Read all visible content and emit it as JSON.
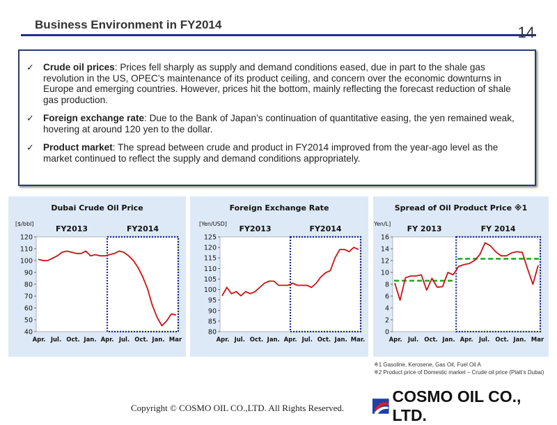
{
  "header": {
    "title": "Business Environment in FY2014",
    "page_number": "14"
  },
  "bullets": [
    {
      "label": "Crude oil prices",
      "sep": ": ",
      "text": "Prices fell sharply as supply and demand conditions eased, due in part to the shale gas revolution in the US, OPEC’s maintenance of its product ceiling, and concern over the economic downturns in Europe and emerging countries. However, prices hit the bottom, mainly reflecting the forecast reduction of shale gas production."
    },
    {
      "label": "Foreign exchange rate",
      "sep": ":  ",
      "text": "Due to the Bank of Japan’s continuation of quantitative easing, the yen remained weak, hovering at around 120 yen to the dollar."
    },
    {
      "label": "Product market",
      "sep": ":  ",
      "text": "The spread between crude and product in FY2014 improved from the year-ago level as the market continued to reflect the supply and demand conditions appropriately."
    }
  ],
  "icons": {
    "bullet": "checkmark-icon",
    "logo": "cosmo-logo-icon"
  },
  "colors": {
    "title_rule": "#1f2f8a",
    "line": "#cc1111",
    "period_box": "#1a2a9a",
    "avg_line": "#22aa22",
    "panel_bg": "#dde9f6"
  },
  "chart_data": [
    {
      "type": "line",
      "title": "Dubai Crude Oil Price",
      "ylabel": "[$/bbl]",
      "period_labels": [
        "FY2013",
        "FY2014"
      ],
      "xticks": [
        "Apr.",
        "Jul.",
        "Oct.",
        "Jan.",
        "Apr.",
        "Jul.",
        "Oct.",
        "Jan.",
        "Mar"
      ],
      "yticks": [
        40,
        50,
        60,
        70,
        80,
        90,
        100,
        110,
        120
      ],
      "ylim": [
        40,
        120
      ],
      "series": [
        {
          "values": [
            101,
            100,
            100,
            102,
            104,
            107,
            108,
            107,
            106,
            106,
            108,
            104,
            105,
            104,
            104,
            105,
            106,
            108,
            107,
            104,
            100,
            94,
            86,
            76,
            62,
            52,
            45,
            49,
            55,
            54
          ]
        }
      ]
    },
    {
      "type": "line",
      "title": "Foreign Exchange Rate",
      "ylabel": "[Yen/USD]",
      "period_labels": [
        "FY2013",
        "FY2014"
      ],
      "xticks": [
        "Apr.",
        "Jul.",
        "Oct.",
        "Jan.",
        "Apr.",
        "Jul.",
        "Oct.",
        "Jan.",
        "Mar."
      ],
      "yticks": [
        80,
        85,
        90,
        95,
        100,
        105,
        110,
        115,
        120,
        125
      ],
      "ylim": [
        80,
        125
      ],
      "series": [
        {
          "values": [
            97,
            101,
            98,
            99,
            97,
            99,
            98,
            99,
            101,
            103,
            104,
            104,
            102,
            102,
            102,
            103,
            102,
            102,
            102,
            101,
            103,
            106,
            108,
            109,
            115,
            119,
            119,
            118,
            120,
            119
          ]
        }
      ]
    },
    {
      "type": "line",
      "title": "Spread of Oil Product Price ※1",
      "ylabel": "[Yen/L]",
      "period_labels": [
        "FY 2013",
        "FY 2014"
      ],
      "xticks": [
        "Apr.",
        "Jul.",
        "Oct.",
        "Jan.",
        "Apr.",
        "Jul.",
        "Oct.",
        "Jan.",
        "Mar"
      ],
      "yticks": [
        0,
        2,
        4,
        6,
        8,
        10,
        12,
        14,
        16
      ],
      "ylim": [
        0,
        16
      ],
      "series": [
        {
          "values": [
            8.2,
            5.3,
            9.1,
            9.4,
            9.4,
            9.6,
            7.0,
            9.0,
            7.5,
            7.6,
            10.0,
            9.6,
            11.0,
            11.3,
            11.5,
            12.0,
            13.0,
            15.0,
            14.5,
            13.5,
            12.8,
            12.8,
            13.3,
            13.5,
            13.4,
            10.6,
            8.0,
            11.2
          ]
        }
      ],
      "averages": {
        "FY2013": 8.6,
        "FY2014": 12.3
      }
    }
  ],
  "footnotes": [
    "※1 Gasoline, Kerosene, Gas Oil, Fuel Oil A",
    "※2 Product price of Domestic market – Crude oil price  (Platt’s Dubai)"
  ],
  "footer": {
    "copyright": "Copyright © COSMO OIL CO.,LTD. All Rights Reserved.",
    "logo_text": "COSMO OIL CO., LTD."
  }
}
